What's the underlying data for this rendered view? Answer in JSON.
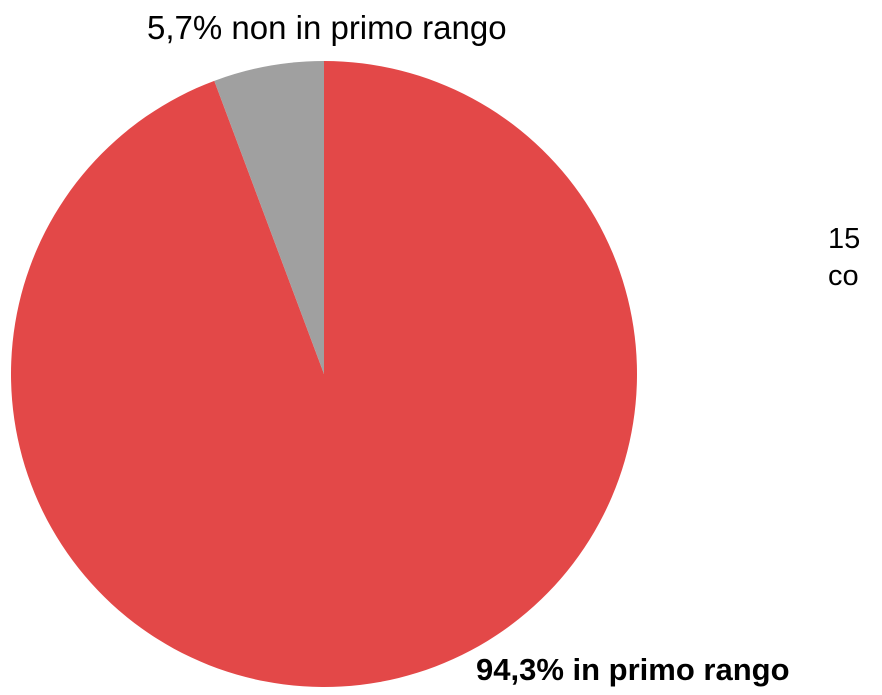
{
  "chart_data": {
    "type": "pie",
    "slices": [
      {
        "label": "in primo rango",
        "value": 94.3,
        "color": "#e34848"
      },
      {
        "label": "non in primo rango",
        "value": 5.7,
        "color": "#a0a0a0"
      }
    ],
    "data_labels": {
      "non_primo": "5,7% non in primo rango",
      "primo": "94,3% in primo rango"
    },
    "side_text_fragments": [
      "15",
      "co"
    ]
  }
}
